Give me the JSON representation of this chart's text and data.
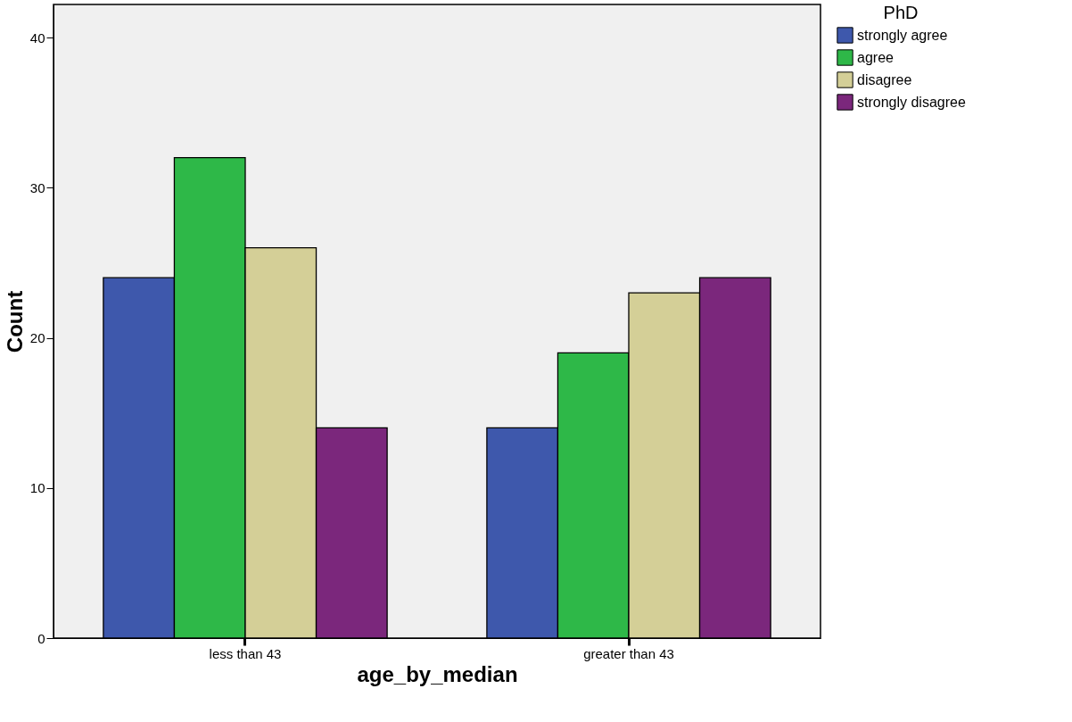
{
  "chart_data": {
    "type": "bar",
    "xlabel": "age_by_median",
    "ylabel": "Count",
    "legend_title": "PhD",
    "legend": "top right",
    "grid": false,
    "categories": [
      "less than 43",
      "greater than 43"
    ],
    "series": [
      {
        "name": "strongly agree",
        "color": "#3e58ac",
        "values": [
          24,
          14
        ]
      },
      {
        "name": "agree",
        "color": "#2eb848",
        "values": [
          32,
          19
        ]
      },
      {
        "name": "disagree",
        "color": "#d4cf97",
        "values": [
          26,
          23
        ]
      },
      {
        "name": "strongly disagree",
        "color": "#7b277c",
        "values": [
          14,
          24
        ]
      }
    ],
    "ylim": [
      0,
      42.2
    ],
    "yticks": [
      0,
      10,
      20,
      30,
      40
    ]
  }
}
